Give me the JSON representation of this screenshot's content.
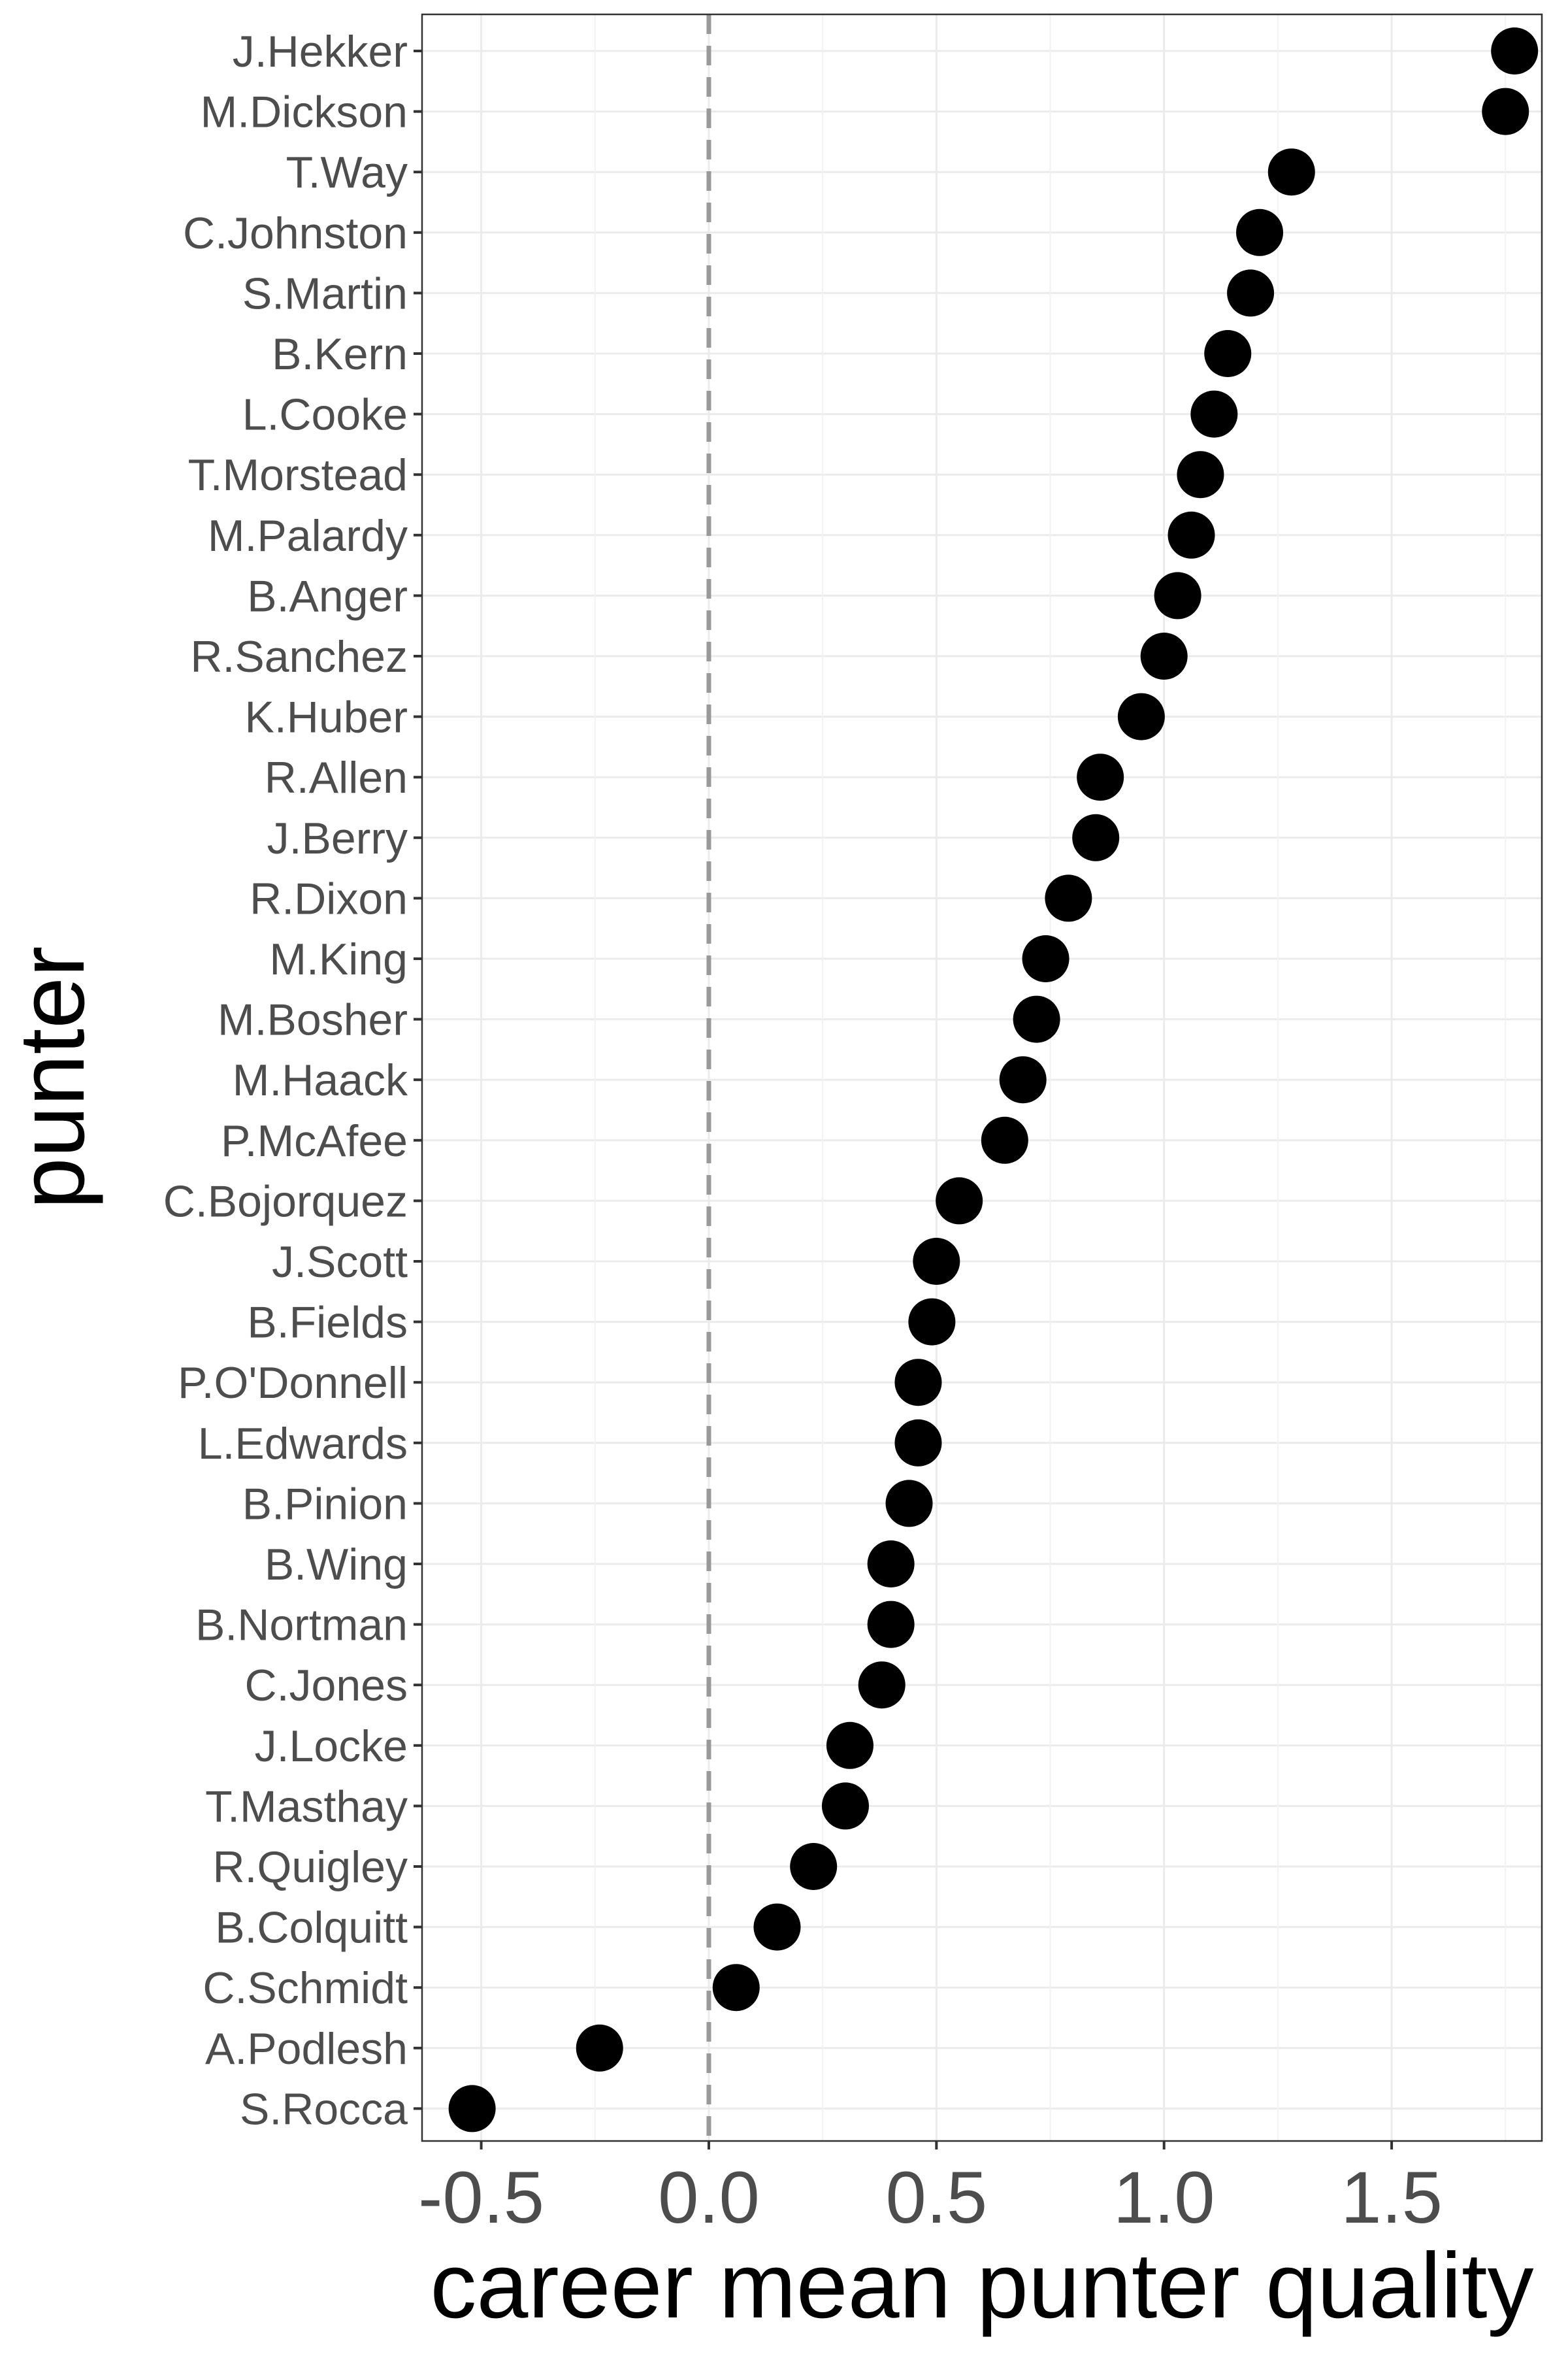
{
  "chart_data": {
    "type": "scatter",
    "xlabel": "career mean punter quality",
    "ylabel": "punter",
    "xlim": [
      -0.63,
      1.83
    ],
    "x_ticks": [
      "-0.5",
      "0.0",
      "0.5",
      "1.0",
      "1.5"
    ],
    "x_tick_values": [
      -0.5,
      0.0,
      0.5,
      1.0,
      1.5
    ],
    "reference_line": {
      "x": 0.0,
      "style": "dashed",
      "color": "#999999"
    },
    "grid": true,
    "point_color": "#000000",
    "categories": [
      "J.Hekker",
      "M.Dickson",
      "T.Way",
      "C.Johnston",
      "S.Martin",
      "B.Kern",
      "L.Cooke",
      "T.Morstead",
      "M.Palardy",
      "B.Anger",
      "R.Sanchez",
      "K.Huber",
      "R.Allen",
      "J.Berry",
      "R.Dixon",
      "M.King",
      "M.Bosher",
      "M.Haack",
      "P.McAfee",
      "C.Bojorquez",
      "J.Scott",
      "B.Fields",
      "P.O'Donnell",
      "L.Edwards",
      "B.Pinion",
      "B.Wing",
      "B.Nortman",
      "C.Jones",
      "J.Locke",
      "T.Masthay",
      "R.Quigley",
      "B.Colquitt",
      "C.Schmidt",
      "A.Podlesh",
      "S.Rocca"
    ],
    "values": [
      1.77,
      1.75,
      1.28,
      1.21,
      1.19,
      1.14,
      1.11,
      1.08,
      1.06,
      1.03,
      1.0,
      0.95,
      0.86,
      0.85,
      0.79,
      0.74,
      0.72,
      0.69,
      0.65,
      0.55,
      0.5,
      0.49,
      0.46,
      0.46,
      0.44,
      0.4,
      0.4,
      0.38,
      0.31,
      0.3,
      0.23,
      0.15,
      0.06,
      -0.24,
      -0.52
    ]
  }
}
